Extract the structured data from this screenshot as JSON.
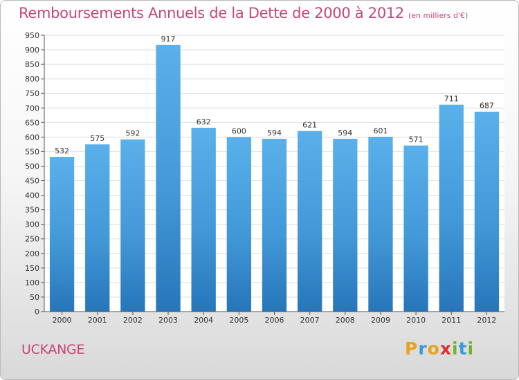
{
  "title": "Remboursements Annuels de la Dette de 2000 à 2012",
  "subtitle": "(en milliers d'€)",
  "city": "UCKANGE",
  "logo": {
    "letters": [
      "P",
      "r",
      "o",
      "x",
      "i",
      "t",
      "i"
    ],
    "colors": [
      "#e8a21a",
      "#3a9ad9",
      "#e8a21a",
      "#d8332f",
      "#6bb52e",
      "#3a9ad9",
      "#6bb52e"
    ]
  },
  "colors": {
    "title": "#c8457a",
    "bar_light": "#5aaee8",
    "bar_dark": "#2a7bbf"
  },
  "chart_data": {
    "type": "bar",
    "categories": [
      "2000",
      "2001",
      "2002",
      "2003",
      "2004",
      "2005",
      "2006",
      "2007",
      "2008",
      "2009",
      "2010",
      "2011",
      "2012"
    ],
    "values": [
      532,
      575,
      592,
      917,
      632,
      600,
      594,
      621,
      594,
      601,
      571,
      711,
      687
    ],
    "ylim": [
      0,
      950
    ],
    "yticks": [
      0,
      50,
      100,
      150,
      200,
      250,
      300,
      350,
      400,
      450,
      500,
      550,
      600,
      650,
      700,
      750,
      800,
      850,
      900,
      950
    ],
    "grid": true,
    "title": "Remboursements Annuels de la Dette de 2000 à 2012",
    "xlabel": "",
    "ylabel": ""
  }
}
